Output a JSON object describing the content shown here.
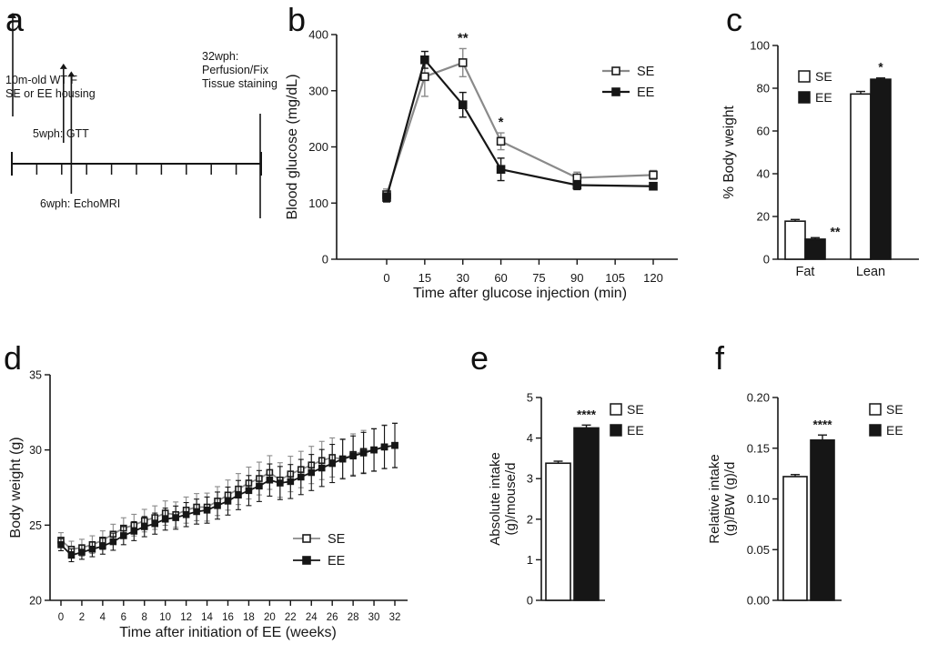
{
  "panels": {
    "a": {
      "label": "a"
    },
    "b": {
      "label": "b"
    },
    "c": {
      "label": "c"
    },
    "d": {
      "label": "d"
    },
    "e": {
      "label": "e"
    },
    "f": {
      "label": "f"
    }
  },
  "colors": {
    "se": "#8a8a8a",
    "ee": "#161616",
    "axis": "#161616",
    "open_fill": "#ffffff"
  },
  "timeline": {
    "title_lines": [
      "10m-old WT F",
      "SE or EE housing"
    ],
    "gtt_label": "5wph: GTT",
    "echomri_label": "6wph: EchoMRI",
    "end_lines": [
      "32wph:",
      "Perfusion/Fix",
      "Tissue staining"
    ],
    "total_weeks": 32,
    "gtt_week": 5,
    "echomri_week": 6,
    "num_ticks": 9
  },
  "chart_data": [
    {
      "id": "b",
      "type": "line",
      "title": "",
      "ylabel": "Blood glucose (mg/dL)",
      "xlabel": "Time after glucose injection (min)",
      "ylim": [
        0,
        400
      ],
      "yticks": [
        0,
        100,
        200,
        300,
        400
      ],
      "xticks": [
        0,
        15,
        30,
        60,
        75,
        90,
        105,
        120
      ],
      "x": [
        0,
        15,
        30,
        60,
        90,
        120
      ],
      "series": [
        {
          "name": "SE",
          "marker": "open",
          "color": "se",
          "values": [
            115,
            325,
            350,
            210,
            145,
            150
          ],
          "err": [
            10,
            35,
            25,
            15,
            10,
            8
          ]
        },
        {
          "name": "EE",
          "marker": "filled",
          "color": "ee",
          "values": [
            110,
            355,
            275,
            160,
            132,
            130
          ],
          "err": [
            8,
            15,
            22,
            20,
            8,
            5
          ]
        }
      ],
      "annotations": [
        {
          "x": 30,
          "text": "**"
        },
        {
          "x": 60,
          "text": "*"
        }
      ],
      "legend_position": "right"
    },
    {
      "id": "c",
      "type": "bar",
      "title": "",
      "ylabel": "% Body weight",
      "categories": [
        "Fat",
        "Lean"
      ],
      "ylim": [
        0,
        100
      ],
      "yticks": [
        0,
        20,
        40,
        60,
        80,
        100
      ],
      "series": [
        {
          "name": "SE",
          "fill": "open",
          "values": [
            17.8,
            77.3
          ],
          "err": [
            0.8,
            1.2
          ]
        },
        {
          "name": "EE",
          "fill": "filled",
          "values": [
            9.4,
            84.2
          ],
          "err": [
            0.7,
            0.6
          ]
        }
      ],
      "annotations": [
        {
          "category": "Fat",
          "series": "EE",
          "text": "**",
          "placement": "right"
        },
        {
          "category": "Lean",
          "series": "EE",
          "text": "*",
          "placement": "above"
        }
      ],
      "legend_position": "top-left"
    },
    {
      "id": "d",
      "type": "line",
      "title": "",
      "ylabel": "Body weight (g)",
      "xlabel": "Time after initiation of  EE (weeks)",
      "ylim": [
        20,
        35
      ],
      "yticks": [
        20,
        25,
        30,
        35
      ],
      "xticks": [
        0,
        2,
        4,
        6,
        8,
        10,
        12,
        14,
        16,
        18,
        20,
        22,
        24,
        26,
        28,
        30,
        32
      ],
      "x": [
        0,
        1,
        2,
        3,
        4,
        5,
        6,
        7,
        8,
        9,
        10,
        11,
        12,
        13,
        14,
        15,
        16,
        17,
        18,
        19,
        20,
        21,
        22,
        23,
        24,
        25,
        26,
        27,
        28,
        29,
        30,
        31,
        32
      ],
      "series": [
        {
          "name": "SE",
          "marker": "open",
          "color": "se",
          "values": [
            24.0,
            23.4,
            23.5,
            23.7,
            24.0,
            24.4,
            24.8,
            25.0,
            25.3,
            25.5,
            25.8,
            25.7,
            26.0,
            26.2,
            26.2,
            26.6,
            27.0,
            27.4,
            27.8,
            28.1,
            28.5,
            28.0,
            28.4,
            28.7,
            29.0,
            29.3,
            29.5,
            29.4,
            29.7,
            29.9,
            30.0,
            30.2,
            30.3
          ],
          "err": [
            0.5,
            0.53,
            0.56,
            0.59,
            0.62,
            0.66,
            0.69,
            0.72,
            0.75,
            0.78,
            0.81,
            0.84,
            0.87,
            0.9,
            0.93,
            0.96,
            1.0,
            1.03,
            1.06,
            1.09,
            1.12,
            1.15,
            1.18,
            1.21,
            1.24,
            1.27,
            1.3,
            1.34,
            1.37,
            1.4,
            1.43,
            1.46,
            1.49
          ]
        },
        {
          "name": "EE",
          "marker": "filled",
          "color": "ee",
          "values": [
            23.7,
            23.0,
            23.2,
            23.4,
            23.6,
            23.9,
            24.3,
            24.6,
            24.9,
            25.1,
            25.4,
            25.5,
            25.7,
            25.9,
            26.0,
            26.3,
            26.6,
            27.0,
            27.3,
            27.6,
            28.0,
            27.8,
            27.9,
            28.2,
            28.5,
            28.8,
            29.1,
            29.4,
            29.6,
            29.8,
            30.0,
            30.2,
            30.3
          ],
          "err": [
            0.4,
            0.43,
            0.47,
            0.5,
            0.53,
            0.57,
            0.6,
            0.63,
            0.67,
            0.7,
            0.73,
            0.77,
            0.8,
            0.83,
            0.87,
            0.9,
            0.93,
            0.97,
            1.0,
            1.03,
            1.07,
            1.1,
            1.13,
            1.17,
            1.2,
            1.23,
            1.27,
            1.3,
            1.33,
            1.37,
            1.4,
            1.43,
            1.47
          ]
        }
      ],
      "annotations": [],
      "legend_position": "inside-right"
    },
    {
      "id": "e",
      "type": "bar",
      "title": "",
      "ylabel": [
        "Absolute intake",
        "(g)/mouse/d"
      ],
      "categories": [
        ""
      ],
      "ylim": [
        0,
        5
      ],
      "yticks": [
        0,
        1,
        2,
        3,
        4,
        5
      ],
      "series": [
        {
          "name": "SE",
          "fill": "open",
          "values": [
            3.38
          ],
          "err": [
            0.05
          ]
        },
        {
          "name": "EE",
          "fill": "filled",
          "values": [
            4.25
          ],
          "err": [
            0.07
          ]
        }
      ],
      "annotations": [
        {
          "category": "",
          "series": "EE",
          "text": "****",
          "placement": "above"
        }
      ],
      "legend_position": "right"
    },
    {
      "id": "f",
      "type": "bar",
      "title": "",
      "ylabel": [
        "Relative intake",
        "(g)/BW (g)/d"
      ],
      "categories": [
        ""
      ],
      "ylim": [
        0,
        0.2
      ],
      "yticks": [
        0,
        0.05,
        0.1,
        0.15,
        0.2
      ],
      "ytick_decimals": 2,
      "series": [
        {
          "name": "SE",
          "fill": "open",
          "values": [
            0.122
          ],
          "err": [
            0.002
          ]
        },
        {
          "name": "EE",
          "fill": "filled",
          "values": [
            0.158
          ],
          "err": [
            0.005
          ]
        }
      ],
      "annotations": [
        {
          "category": "",
          "series": "EE",
          "text": "****",
          "placement": "above"
        }
      ],
      "legend_position": "right"
    }
  ]
}
